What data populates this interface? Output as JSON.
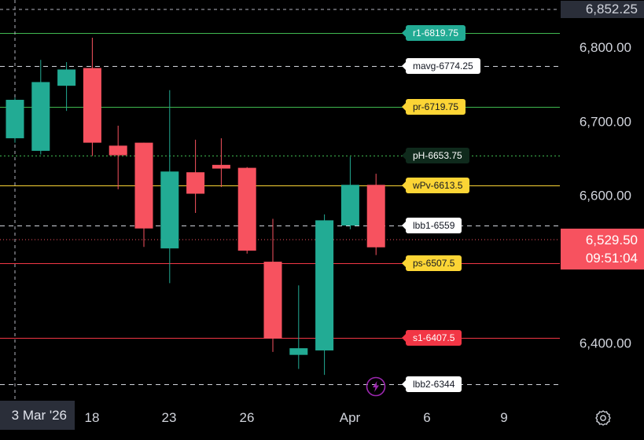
{
  "chart_data": {
    "type": "candlestick",
    "y_axis": {
      "ticks": [
        "6,800.00",
        "6,700.00",
        "6,600.00",
        "6,400.00"
      ],
      "tick_values": [
        6800,
        6700,
        6600,
        6400
      ],
      "range": [
        6322,
        6864
      ]
    },
    "x_axis": {
      "ticks": [
        "18",
        "23",
        "26",
        "Apr",
        "6",
        "9"
      ],
      "crosshair_label": "3 Mar '26"
    },
    "candles": [
      {
        "o": 6677,
        "h": 6732,
        "l": 6671,
        "c": 6729
      },
      {
        "o": 6660,
        "h": 6783,
        "l": 6655,
        "c": 6753
      },
      {
        "o": 6748,
        "h": 6780,
        "l": 6714,
        "c": 6770
      },
      {
        "o": 6772,
        "h": 6813,
        "l": 6653,
        "c": 6671
      },
      {
        "o": 6667,
        "h": 6694,
        "l": 6608,
        "c": 6654
      },
      {
        "o": 6671,
        "h": 6671,
        "l": 6530,
        "c": 6555
      },
      {
        "o": 6528,
        "h": 6742,
        "l": 6481,
        "c": 6632
      },
      {
        "o": 6631,
        "h": 6675,
        "l": 6576,
        "c": 6602
      },
      {
        "o": 6641,
        "h": 6677,
        "l": 6611,
        "c": 6636
      },
      {
        "o": 6637,
        "h": 6638,
        "l": 6521,
        "c": 6525
      },
      {
        "o": 6510,
        "h": 6568,
        "l": 6388,
        "c": 6406
      },
      {
        "o": 6384,
        "h": 6478,
        "l": 6365,
        "c": 6393
      },
      {
        "o": 6390,
        "h": 6574,
        "l": 6357,
        "c": 6566
      },
      {
        "o": 6559,
        "h": 6652,
        "l": 6554,
        "c": 6614
      },
      {
        "o": 6614,
        "h": 6629,
        "l": 6519,
        "c": 6529.5
      }
    ],
    "current_price": {
      "value": "6,529.50",
      "countdown": "09:51:04"
    },
    "top_price": "6,852.25",
    "levels": [
      {
        "label": "r1-6819.75",
        "value": 6819.75,
        "line": "#3fb950",
        "style": "solid",
        "bg": "#22ab94",
        "fg": "#ffffff"
      },
      {
        "label": "mavg-6774.25",
        "value": 6774.25,
        "line": "#d1d4dc",
        "style": "dashed",
        "bg": "#ffffff",
        "fg": "#131722"
      },
      {
        "label": "pr-6719.75",
        "value": 6719.75,
        "line": "#3fb950",
        "style": "solid",
        "bg": "#fcd535",
        "fg": "#131722"
      },
      {
        "label": "pH-6653.75",
        "value": 6653.75,
        "line": "#3fb950",
        "style": "dotted",
        "bg": "#0f2a1c",
        "fg": "#ffffff"
      },
      {
        "label": "wPv-6613.5",
        "value": 6613.5,
        "line": "#fcd535",
        "style": "solid",
        "bg": "#fcd535",
        "fg": "#131722"
      },
      {
        "label": "lbb1-6559",
        "value": 6559,
        "line": "#d1d4dc",
        "style": "dashed",
        "bg": "#ffffff",
        "fg": "#131722"
      },
      {
        "label": "ps-6507.5",
        "value": 6507.5,
        "line": "#f23645",
        "style": "solid",
        "bg": "#fcd535",
        "fg": "#131722"
      },
      {
        "label": "s1-6407.5",
        "value": 6407.5,
        "line": "#f23645",
        "style": "solid",
        "bg": "#f23645",
        "fg": "#ffffff"
      },
      {
        "label": "lbb2-6344",
        "value": 6344,
        "line": "#d1d4dc",
        "style": "dashed",
        "bg": "#ffffff",
        "fg": "#131722"
      }
    ],
    "colors": {
      "up": "#22ab94",
      "down": "#f7525f",
      "background": "#000000",
      "axis_text": "#d1d4dc"
    }
  }
}
